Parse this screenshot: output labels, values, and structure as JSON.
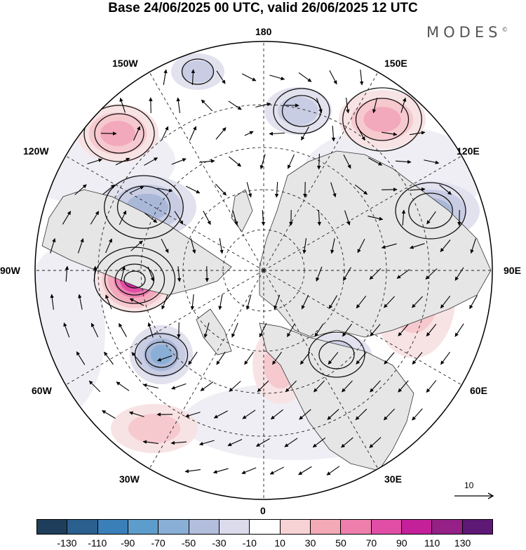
{
  "title": "Base 24/06/2025 00 UTC, valid 26/06/2025 12 UTC",
  "brand": {
    "text": "MODES",
    "mark": "©"
  },
  "longitude_labels": {
    "lon_180": "180",
    "lon_150e": "150E",
    "lon_120e": "120E",
    "lon_90e": "90E",
    "lon_60e": "60E",
    "lon_30e": "30E",
    "lon_0": "0",
    "lon_30w": "30W",
    "lon_60w": "60W",
    "lon_90w": "90W",
    "lon_120w": "120W",
    "lon_150w": "150W"
  },
  "reference_vector": {
    "value": "10"
  },
  "colorbar": {
    "colors": [
      "#1f3e5c",
      "#2b5f8e",
      "#3b7fb8",
      "#5d9dcc",
      "#8aafd6",
      "#b3bedd",
      "#dcdbec",
      "#ffffff",
      "#f8d3d6",
      "#f4a9b7",
      "#ee7fad",
      "#e14ea6",
      "#c4209a",
      "#952086",
      "#5e1875"
    ],
    "tick_labels": [
      "-130",
      "-110",
      "-90",
      "-70",
      "-50",
      "-30",
      "-10",
      "10",
      "30",
      "50",
      "70",
      "90",
      "110",
      "130"
    ]
  },
  "map": {
    "projection": "north-polar-stereographic",
    "anomaly_centers": [
      {
        "name": "aleutian-low",
        "sign": "negative",
        "level": -30
      },
      {
        "name": "kamchatka-high",
        "sign": "positive",
        "level": 50
      },
      {
        "name": "east-siberia-low",
        "sign": "negative",
        "level": -30
      },
      {
        "name": "pacific-high",
        "sign": "positive",
        "level": 50
      },
      {
        "name": "canada-low",
        "sign": "negative",
        "level": -50
      },
      {
        "name": "hudson-high",
        "sign": "positive",
        "level": 110
      },
      {
        "name": "north-atlantic-low",
        "sign": "negative",
        "level": -70
      },
      {
        "name": "central-siberia-low",
        "sign": "negative",
        "level": -50
      },
      {
        "name": "central-asia-high",
        "sign": "positive",
        "level": 30
      },
      {
        "name": "europe-high",
        "sign": "positive",
        "level": 30
      },
      {
        "name": "west-russia-low",
        "sign": "negative",
        "level": -30
      },
      {
        "name": "subtropical-atlantic-high",
        "sign": "positive",
        "level": 30
      }
    ]
  }
}
